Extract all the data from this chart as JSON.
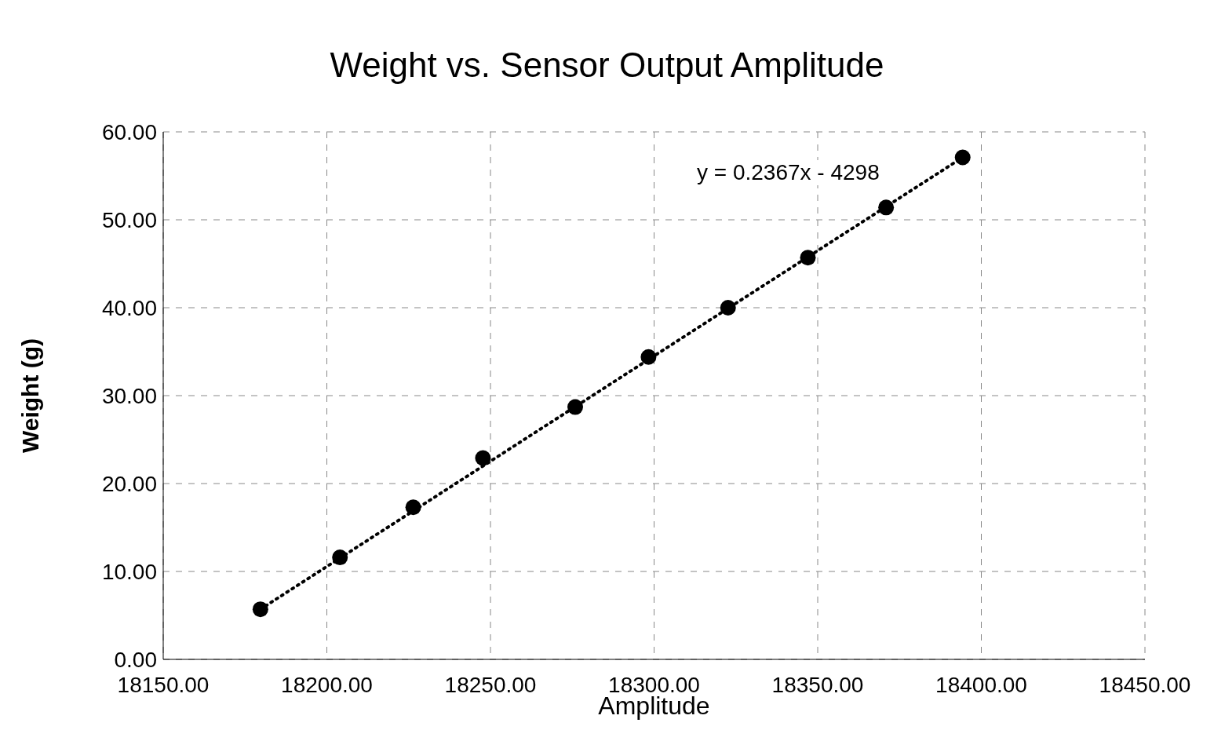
{
  "chart_data": {
    "type": "scatter",
    "title": "Weight vs. Sensor Output Amplitude",
    "xlabel": "Amplitude",
    "ylabel": "Weight (g)",
    "series": [
      {
        "color": "#000000",
        "marker": "circle",
        "x": [
          18179.7,
          18204,
          18226.4,
          18247.7,
          18275.9,
          18298.3,
          18322.6,
          18347,
          18370.9,
          18394.3
        ],
        "values": [
          5.7,
          11.6,
          17.3,
          22.9,
          28.7,
          34.4,
          40.0,
          45.7,
          51.4,
          57.1
        ]
      },
      {
        "type": "line",
        "color": "#000000",
        "line_style": "dotted",
        "x": [
          18179.7,
          18394.3
        ],
        "values": [
          5.7,
          57.1
        ]
      }
    ],
    "xlim": [
      18150,
      18450
    ],
    "xticks": [
      {
        "value": 18150,
        "label": "18150.00"
      },
      {
        "value": 18200,
        "label": "18200.00"
      },
      {
        "value": 18250,
        "label": "18250.00"
      },
      {
        "value": 18300,
        "label": "18300.00"
      },
      {
        "value": 18350,
        "label": "18350.00"
      },
      {
        "value": 18400,
        "label": "18400.00"
      },
      {
        "value": 18450,
        "label": "18450.00"
      }
    ],
    "ylim": [
      0,
      60
    ],
    "yticks": [
      {
        "value": 0,
        "label": "0.00"
      },
      {
        "value": 10,
        "label": "10.00"
      },
      {
        "value": 20,
        "label": "20.00"
      },
      {
        "value": 30,
        "label": "30.00"
      },
      {
        "value": 40,
        "label": "40.00"
      },
      {
        "value": 50,
        "label": "50.00"
      },
      {
        "value": 60,
        "label": "60.00"
      }
    ],
    "grid": true,
    "annotations": [
      "y = 0.2367x - 4298"
    ]
  }
}
